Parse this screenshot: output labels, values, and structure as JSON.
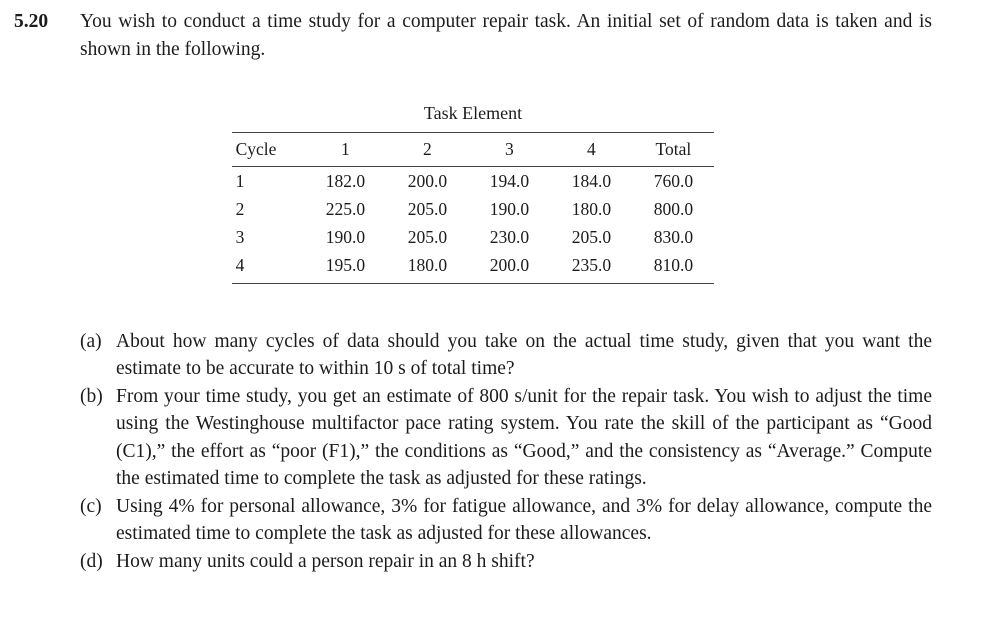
{
  "problem": {
    "number": "5.20",
    "intro": "You wish to conduct a time study for a computer repair task. An initial set of random data is taken and is shown in the following."
  },
  "table": {
    "caption": "Task Element",
    "headers": [
      "Cycle",
      "1",
      "2",
      "3",
      "4",
      "Total"
    ],
    "rows": [
      [
        "1",
        "182.0",
        "200.0",
        "194.0",
        "184.0",
        "760.0"
      ],
      [
        "2",
        "225.0",
        "205.0",
        "190.0",
        "180.0",
        "800.0"
      ],
      [
        "3",
        "190.0",
        "205.0",
        "230.0",
        "205.0",
        "830.0"
      ],
      [
        "4",
        "195.0",
        "180.0",
        "200.0",
        "235.0",
        "810.0"
      ]
    ]
  },
  "parts": [
    {
      "label": "(a)",
      "text": "About how many cycles of data should you take on the actual time study, given that you want the estimate to be accurate to within 10 s of total time?"
    },
    {
      "label": "(b)",
      "text": "From your time study, you get an estimate of 800 s/unit for the repair task. You wish to adjust the time using the Westinghouse multifactor pace rating system. You rate the skill of the participant as “Good (C1),” the effort as “poor (F1),” the conditions as “Good,” and the consistency as “Average.” Compute the estimated time to complete the task as adjusted for these ratings."
    },
    {
      "label": "(c)",
      "text": "Using 4% for personal allowance, 3% for fatigue allowance, and 3% for delay allowance, compute the estimated time to complete the task as adjusted for these allowances."
    },
    {
      "label": "(d)",
      "text": "How many units could a person repair in an 8 h shift?"
    }
  ]
}
